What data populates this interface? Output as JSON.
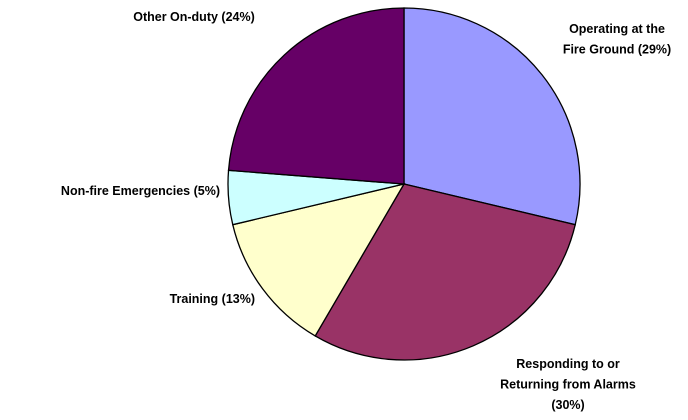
{
  "chart_data": {
    "type": "pie",
    "categories": [
      "Operating at the Fire Ground (29%)",
      "Responding to or Returning from Alarms (30%)",
      "Training (13%)",
      "Non-fire Emergencies (5%)",
      "Other On-duty (24%)"
    ],
    "values": [
      29,
      30,
      13,
      5,
      24
    ],
    "colors": [
      "#9999ff",
      "#993366",
      "#ffffcc",
      "#ccffff",
      "#660066"
    ]
  }
}
